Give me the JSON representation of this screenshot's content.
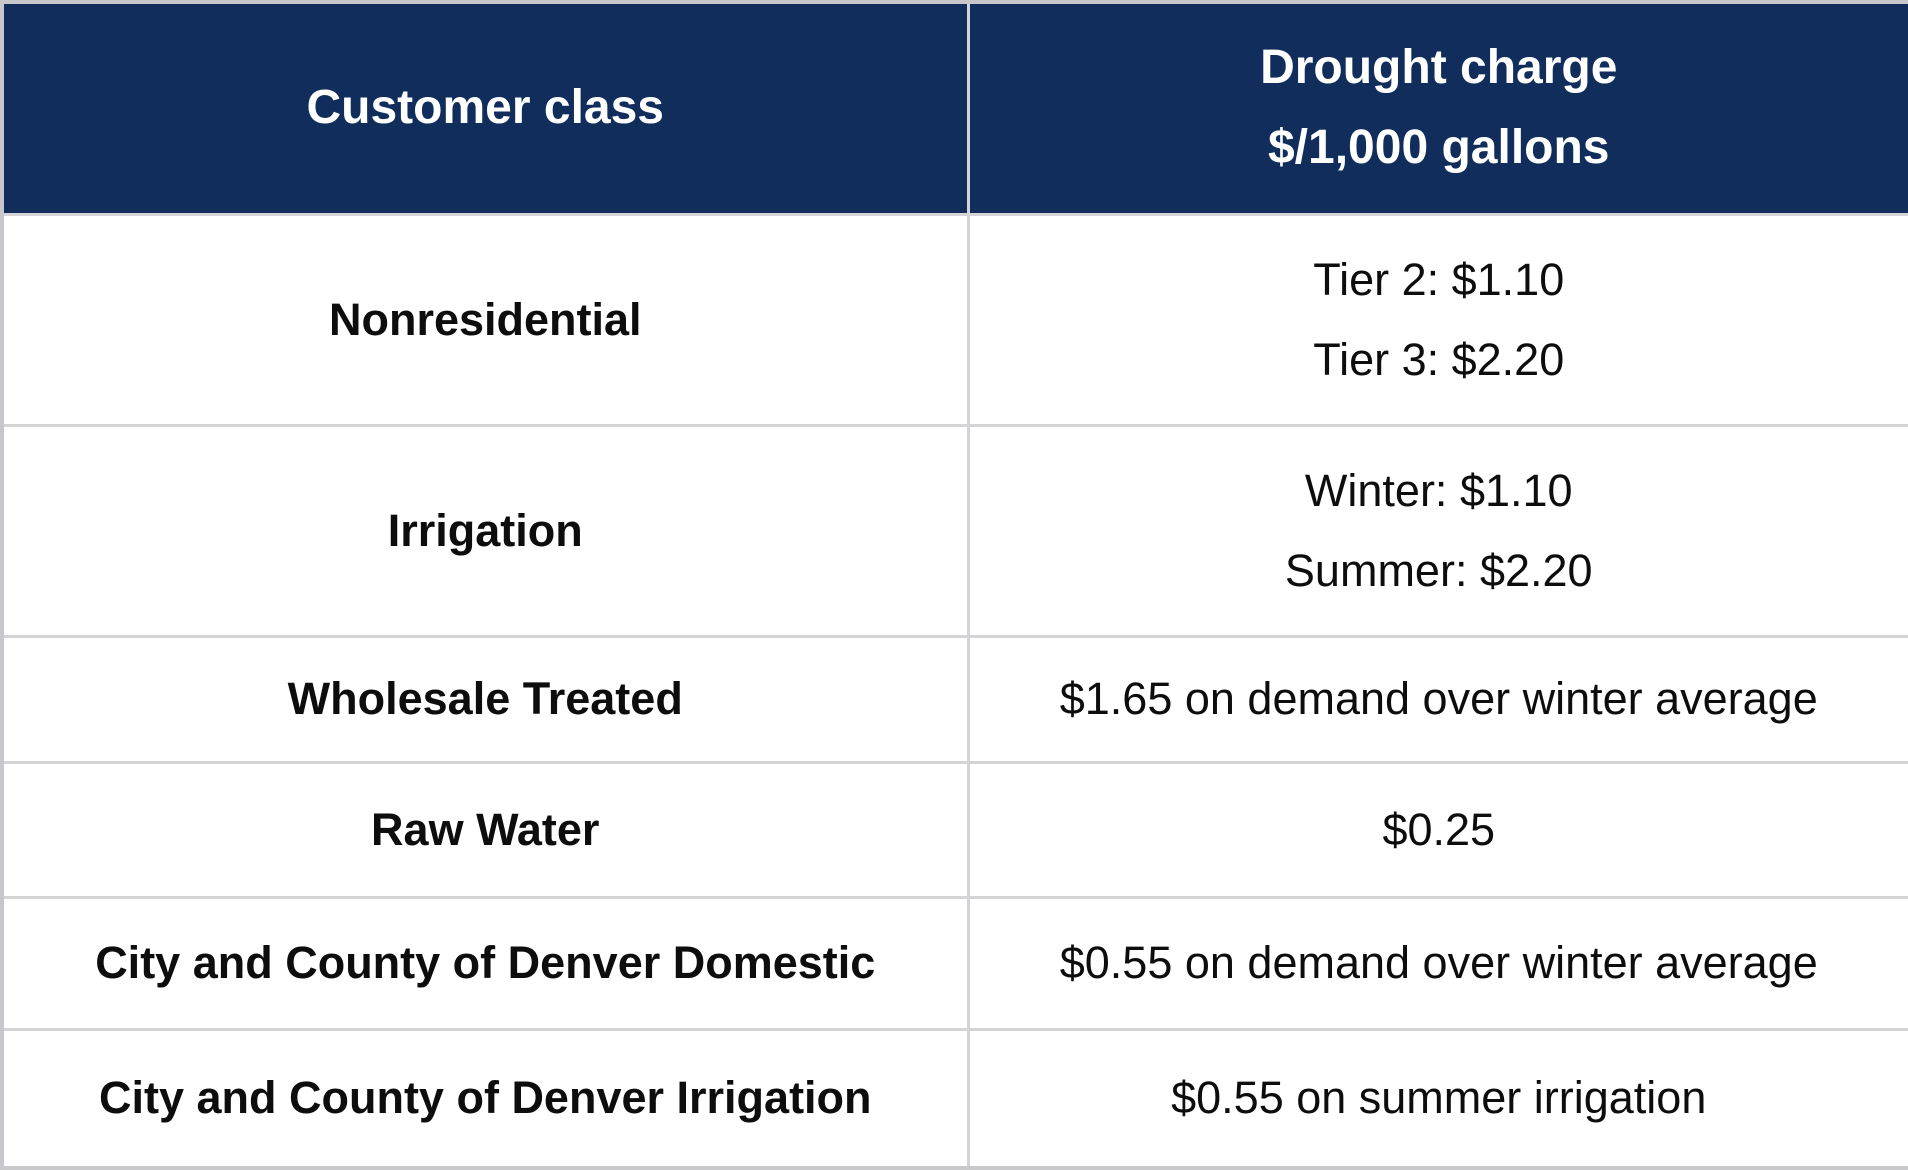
{
  "table": {
    "title_semantic": "Drought charge rate table",
    "header": {
      "customer_class": "Customer class",
      "drought_charge_line1": "Drought charge",
      "drought_charge_line2": "$/1,000 gallons"
    },
    "rows": [
      {
        "customer_class": "Nonresidential",
        "charge_lines": [
          "Tier 2: $1.10",
          "Tier 3: $2.20"
        ]
      },
      {
        "customer_class": "Irrigation",
        "charge_lines": [
          "Winter: $1.10",
          "Summer: $2.20"
        ]
      },
      {
        "customer_class": "Wholesale Treated",
        "charge_lines": [
          "$1.65 on demand over winter average"
        ]
      },
      {
        "customer_class": "Raw Water",
        "charge_lines": [
          "$0.25"
        ]
      },
      {
        "customer_class": "City and County of Denver Domestic",
        "charge_lines": [
          "$0.55 on demand over winter average"
        ]
      },
      {
        "customer_class": "City and County of Denver Irrigation",
        "charge_lines": [
          "$0.55 on summer irrigation"
        ]
      }
    ],
    "colors": {
      "header_background": "#112d5b",
      "header_text": "#ffffff",
      "body_text": "#0d0d0d",
      "grid_border": "#d4d4d6",
      "outer_border": "#c8c8cc",
      "row_background": "#ffffff"
    }
  }
}
